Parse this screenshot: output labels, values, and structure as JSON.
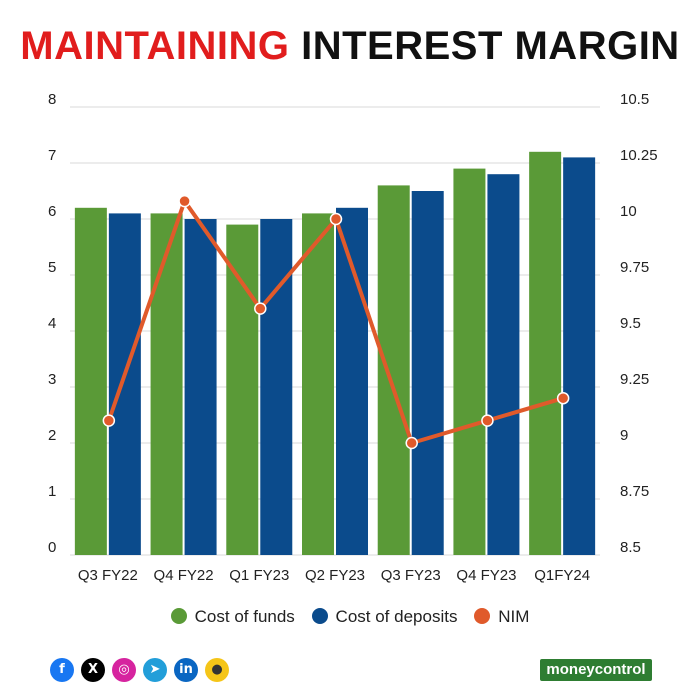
{
  "header": {
    "title_part1": "MAINTAINING",
    "title_part2": " INTEREST MARGIN"
  },
  "chart_data": {
    "type": "bar",
    "categories": [
      "Q3 FY22",
      "Q4 FY22",
      "Q1 FY23",
      "Q2 FY23",
      "Q3 FY23",
      "Q4 FY23",
      "Q1FY24"
    ],
    "series": [
      {
        "name": "Cost of funds",
        "type": "bar",
        "axis": "left",
        "color": "#5a9a37",
        "values": [
          6.2,
          6.1,
          5.9,
          6.1,
          6.6,
          6.9,
          7.2
        ]
      },
      {
        "name": "Cost of deposits",
        "type": "bar",
        "axis": "left",
        "color": "#0b4b8c",
        "values": [
          6.1,
          6.0,
          6.0,
          6.2,
          6.5,
          6.8,
          7.1
        ]
      },
      {
        "name": "NIM",
        "type": "line",
        "axis": "right",
        "color": "#e05a2b",
        "values": [
          9.1,
          10.08,
          9.6,
          10.0,
          9.0,
          9.1,
          9.2
        ]
      }
    ],
    "left_axis": {
      "min": 0,
      "max": 8,
      "ticks": [
        "0",
        "1",
        "2",
        "3",
        "4",
        "5",
        "6",
        "7",
        "8"
      ]
    },
    "right_axis": {
      "min": 8.5,
      "max": 10.5,
      "ticks": [
        "8.5",
        "8.75",
        "9",
        "9.25",
        "9.5",
        "9.75",
        "10",
        "10.25",
        "10.5"
      ]
    },
    "grid": true,
    "legend_position": "bottom"
  },
  "legend": [
    {
      "label": "Cost of funds",
      "color": "#5a9a37"
    },
    {
      "label": "Cost of deposits",
      "color": "#0b4b8c"
    },
    {
      "label": "NIM",
      "color": "#e05a2b"
    }
  ],
  "social_icons": [
    {
      "name": "facebook-icon",
      "glyph": "f",
      "color": "#1877f2"
    },
    {
      "name": "x-icon",
      "glyph": "X",
      "color": "#000000"
    },
    {
      "name": "instagram-icon",
      "glyph": "◎",
      "color": "#d6249f"
    },
    {
      "name": "telegram-icon",
      "glyph": "➤",
      "color": "#229ed9"
    },
    {
      "name": "linkedin-icon",
      "glyph": "in",
      "color": "#0a66c2"
    },
    {
      "name": "koo-icon",
      "glyph": "●",
      "color": "#f5c518"
    }
  ],
  "brand": {
    "label": "moneycontrol"
  }
}
